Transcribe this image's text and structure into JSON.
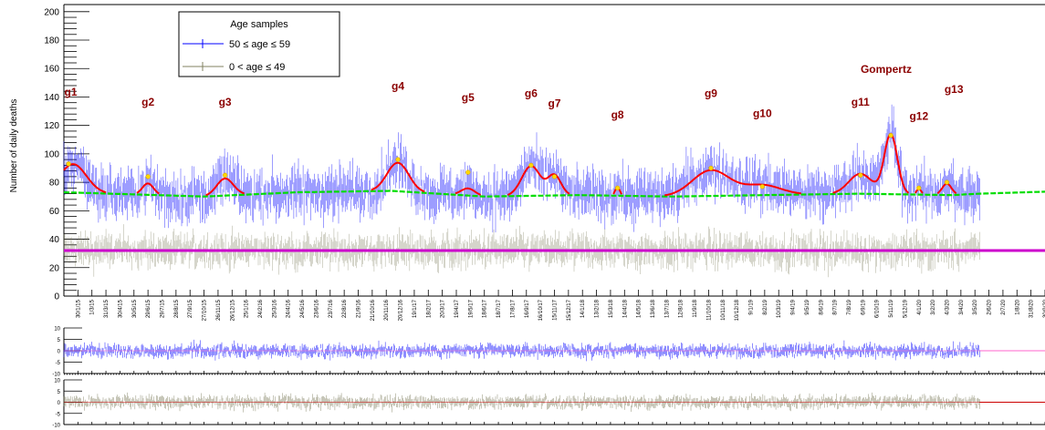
{
  "chart_data": [
    {
      "type": "line",
      "ylabel": "Number of daily deaths",
      "ylim": [
        0,
        205
      ],
      "yticks": [
        0,
        20,
        40,
        60,
        80,
        100,
        120,
        140,
        160,
        180,
        200
      ],
      "x_tick_labels": [
        "30/1/15",
        "1/3/15",
        "31/3/15",
        "30/4/15",
        "30/5/15",
        "29/6/15",
        "29/7/15",
        "28/8/15",
        "27/9/15",
        "27/10/15",
        "26/11/15",
        "26/12/15",
        "25/1/16",
        "24/2/16",
        "25/3/16",
        "24/4/16",
        "24/5/16",
        "23/6/16",
        "23/7/16",
        "22/8/16",
        "21/9/16",
        "21/10/16",
        "20/11/16",
        "20/12/16",
        "19/1/17",
        "18/2/17",
        "20/3/17",
        "19/4/17",
        "19/5/17",
        "18/6/17",
        "18/7/17",
        "17/8/17",
        "16/9/17",
        "16/10/17",
        "15/11/17",
        "15/12/17",
        "14/1/18",
        "13/2/18",
        "15/3/18",
        "14/4/18",
        "14/5/18",
        "13/6/18",
        "13/7/18",
        "12/8/18",
        "11/9/18",
        "11/10/18",
        "10/11/18",
        "10/12/18",
        "9/1/19",
        "8/2/19",
        "10/3/19",
        "9/4/19",
        "9/5/19",
        "8/6/19",
        "8/7/19",
        "7/8/19",
        "6/9/19",
        "6/10/19",
        "5/11/19",
        "5/12/19",
        "4/1/20",
        "3/2/20",
        "4/3/20",
        "3/4/20",
        "3/5/20",
        "2/6/20",
        "2/7/20",
        "1/8/20",
        "31/8/20",
        "30/9/20",
        "30/10/20",
        "29/11/20",
        "29/12/20"
      ],
      "legend": {
        "title": "Age samples",
        "placement": "top-left",
        "entries": [
          {
            "label": "50 ≤ age ≤ 59",
            "color": "#0000ff"
          },
          {
            "label": "0 < age ≤ 49",
            "color": "#808060"
          }
        ]
      },
      "peak_labels": [
        {
          "text": "g1",
          "x": 1,
          "y": 141
        },
        {
          "text": "g2",
          "x": 180,
          "y": 134
        },
        {
          "text": "g3",
          "x": 345,
          "y": 134
        },
        {
          "text": "g4",
          "x": 715,
          "y": 145
        },
        {
          "text": "g5",
          "x": 865,
          "y": 137
        },
        {
          "text": "g6",
          "x": 1000,
          "y": 140
        },
        {
          "text": "g7",
          "x": 1050,
          "y": 133
        },
        {
          "text": "g8",
          "x": 1185,
          "y": 125
        },
        {
          "text": "g9",
          "x": 1385,
          "y": 140
        },
        {
          "text": "g10",
          "x": 1495,
          "y": 126
        },
        {
          "text": "g11",
          "x": 1705,
          "y": 134
        },
        {
          "text": "g12",
          "x": 1830,
          "y": 124
        },
        {
          "text": "g13",
          "x": 1905,
          "y": 143
        },
        {
          "text": "Gompertz",
          "x": 1760,
          "y": 157
        }
      ],
      "series": [
        {
          "name": "50 ≤ age ≤ 59",
          "color": "#0000ff",
          "kind": "data",
          "baseline": [
            [
              0,
              73
            ],
            [
              300,
              70
            ],
            [
              500,
              73
            ],
            [
              700,
              74
            ],
            [
              900,
              70
            ],
            [
              1100,
              71
            ],
            [
              1300,
              70
            ],
            [
              1500,
              71
            ],
            [
              1700,
              72
            ],
            [
              1900,
              71
            ],
            [
              1960,
              72
            ]
          ],
          "bumps": [
            [
              20,
              20,
              28
            ],
            [
              180,
              8,
              12
            ],
            [
              345,
              12,
              18
            ],
            [
              715,
              20,
              23
            ],
            [
              865,
              5,
              15
            ],
            [
              1000,
              21,
              20
            ],
            [
              1050,
              14,
              14
            ],
            [
              1185,
              6,
              5
            ],
            [
              1385,
              18,
              40
            ],
            [
              1495,
              7,
              40
            ],
            [
              1705,
              14,
              25
            ],
            [
              1770,
              42,
              14
            ],
            [
              1830,
              4,
              5
            ],
            [
              1890,
              8,
              10
            ]
          ],
          "noise": 10,
          "x_end": 1960
        },
        {
          "name": "0 < age ≤ 49",
          "color": "#808060",
          "kind": "data",
          "level": 32,
          "noise": 7,
          "x_end": 1960
        },
        {
          "kind": "fit-red",
          "color": "#ff0000"
        },
        {
          "kind": "fit-green",
          "color": "#00dd00",
          "x_end": 2100
        },
        {
          "kind": "fit-magenta",
          "color": "#cc00cc",
          "level": 32,
          "x_end": 2100
        }
      ],
      "peak_markers": [
        [
          10,
          93
        ],
        [
          180,
          84
        ],
        [
          345,
          85
        ],
        [
          715,
          96
        ],
        [
          865,
          87
        ],
        [
          1000,
          92
        ],
        [
          1050,
          84
        ],
        [
          1185,
          76
        ],
        [
          1385,
          90
        ],
        [
          1495,
          77
        ],
        [
          1705,
          85
        ],
        [
          1770,
          113
        ],
        [
          1830,
          76
        ],
        [
          1890,
          80
        ]
      ]
    },
    {
      "type": "scatter",
      "name": "residuals-upper",
      "ylim": [
        -10,
        10
      ],
      "yticks": [
        -10,
        -5,
        0,
        5,
        10
      ],
      "color": "#0000ff",
      "zero_line_color": "#ff66cc",
      "noise": 2
    },
    {
      "type": "scatter",
      "name": "residuals-lower",
      "ylim": [
        -10,
        10
      ],
      "yticks": [
        -10,
        -5,
        0,
        5,
        10
      ],
      "color": "#808060",
      "zero_line_color": "#cc0000",
      "noise": 2
    }
  ]
}
